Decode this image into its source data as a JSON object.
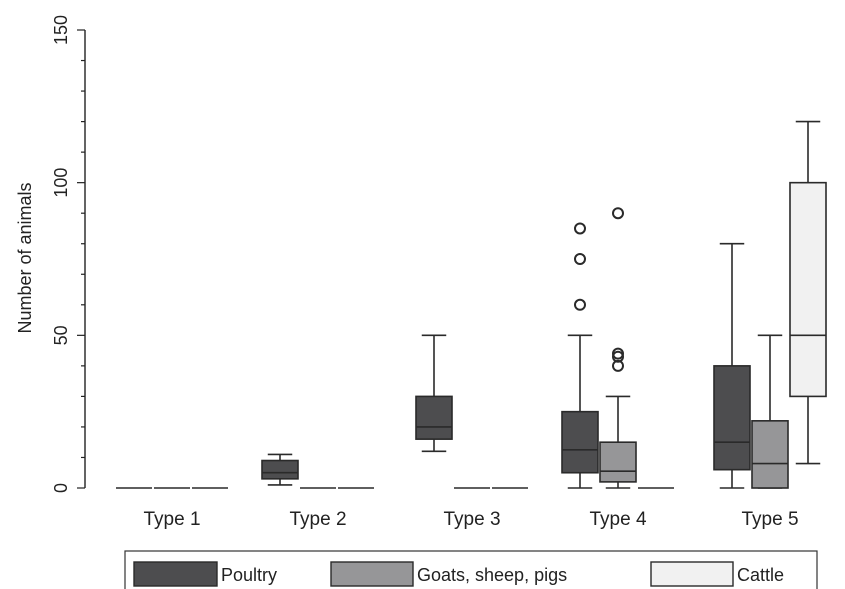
{
  "chart_data": {
    "type": "box",
    "title": "",
    "xlabel": "",
    "ylabel": "Number of animals",
    "ylim": [
      0,
      150
    ],
    "yticks": [
      0,
      50,
      100,
      150
    ],
    "grid": false,
    "legend_position": "bottom",
    "categories": [
      "Type 1",
      "Type 2",
      "Type 3",
      "Type 4",
      "Type 5"
    ],
    "series": [
      {
        "name": "Poultry",
        "color": "#4d4d4f",
        "boxes": [
          {
            "min": 0,
            "q1": 0,
            "median": 0,
            "q3": 0,
            "max": 0,
            "outliers": []
          },
          {
            "min": 1,
            "q1": 3,
            "median": 5,
            "q3": 9,
            "max": 11,
            "outliers": []
          },
          {
            "min": 12,
            "q1": 16,
            "median": 20,
            "q3": 30,
            "max": 50,
            "outliers": []
          },
          {
            "min": 0,
            "q1": 5,
            "median": 12.5,
            "q3": 25,
            "max": 50,
            "outliers": [
              60,
              75,
              85
            ]
          },
          {
            "min": 0,
            "q1": 6,
            "median": 15,
            "q3": 40,
            "max": 80,
            "outliers": []
          }
        ]
      },
      {
        "name": "Goats, sheep, pigs",
        "color": "#969698",
        "boxes": [
          {
            "min": 0,
            "q1": 0,
            "median": 0,
            "q3": 0,
            "max": 0,
            "outliers": []
          },
          {
            "min": 0,
            "q1": 0,
            "median": 0,
            "q3": 0,
            "max": 0,
            "outliers": []
          },
          {
            "min": 0,
            "q1": 0,
            "median": 0,
            "q3": 0,
            "max": 0,
            "outliers": []
          },
          {
            "min": 0,
            "q1": 2,
            "median": 5.5,
            "q3": 15,
            "max": 30,
            "outliers": [
              40,
              43,
              44,
              90
            ]
          },
          {
            "min": 0,
            "q1": 0,
            "median": 8,
            "q3": 22,
            "max": 50,
            "outliers": []
          }
        ]
      },
      {
        "name": "Cattle",
        "color": "#f1f1f1",
        "boxes": [
          {
            "min": 0,
            "q1": 0,
            "median": 0,
            "q3": 0,
            "max": 0,
            "outliers": []
          },
          {
            "min": 0,
            "q1": 0,
            "median": 0,
            "q3": 0,
            "max": 0,
            "outliers": []
          },
          {
            "min": 0,
            "q1": 0,
            "median": 0,
            "q3": 0,
            "max": 0,
            "outliers": []
          },
          {
            "min": 0,
            "q1": 0,
            "median": 0,
            "q3": 0,
            "max": 0,
            "outliers": []
          },
          {
            "min": 8,
            "q1": 30,
            "median": 50,
            "q3": 100,
            "max": 120,
            "outliers": []
          }
        ]
      }
    ]
  }
}
